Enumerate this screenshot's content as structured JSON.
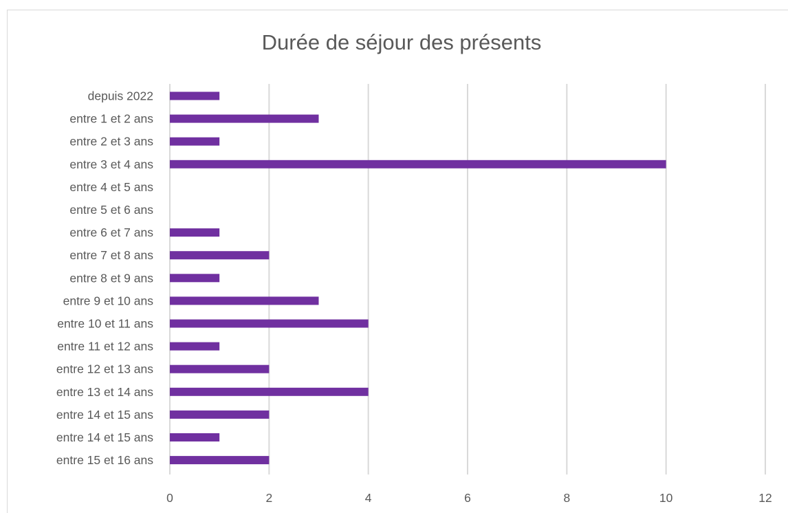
{
  "chart_data": {
    "type": "bar",
    "orientation": "horizontal",
    "title": "Durée de séjour des présents",
    "xlabel": "",
    "ylabel": "",
    "categories": [
      "depuis 2022",
      "entre 1 et 2 ans",
      "entre 2 et 3 ans",
      "entre 3 et 4 ans",
      "entre 4 et 5 ans",
      "entre 5 et 6 ans",
      "entre 6 et 7 ans",
      "entre 7 et 8 ans",
      "entre 8 et 9 ans",
      "entre 9 et 10 ans",
      "entre 10 et 11 ans",
      "entre 11 et 12 ans",
      "entre 12 et 13 ans",
      "entre 13 et 14 ans",
      "entre 14 et 15 ans",
      "entre 14 et 15 ans",
      "entre 15 et 16 ans"
    ],
    "values": [
      1,
      3,
      1,
      10,
      0,
      0,
      1,
      2,
      1,
      3,
      4,
      1,
      2,
      4,
      2,
      1,
      2
    ],
    "xlim": [
      0,
      12
    ],
    "xticks": [
      "0",
      "2",
      "4",
      "6",
      "8",
      "10",
      "12"
    ],
    "grid": "vertical",
    "legend": "none",
    "bar_color": "#7030a0",
    "gridline_color": "#d9d9d9",
    "text_color": "#595959"
  }
}
